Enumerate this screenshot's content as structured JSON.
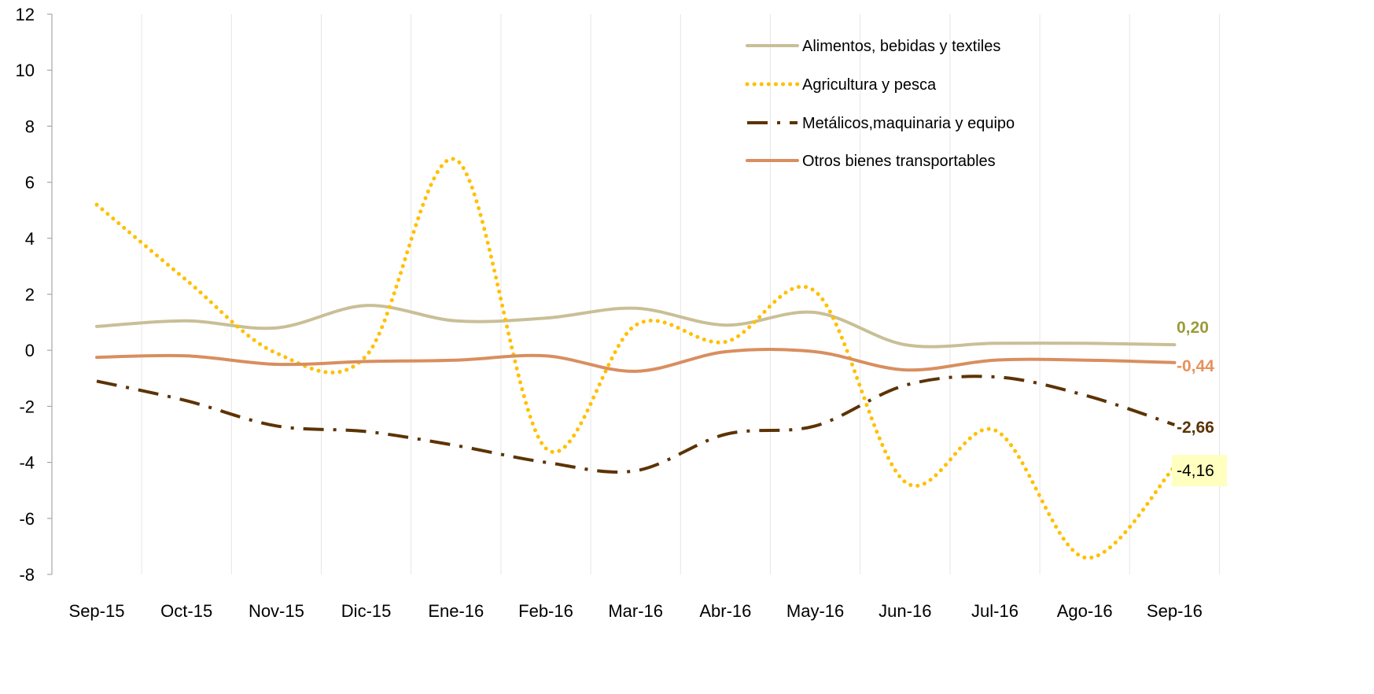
{
  "chart_data": {
    "type": "line",
    "categories": [
      "Sep-15",
      "Oct-15",
      "Nov-15",
      "Dic-15",
      "Ene-16",
      "Feb-16",
      "Mar-16",
      "Abr-16",
      "May-16",
      "Jun-16",
      "Jul-16",
      "Ago-16",
      "Sep-16"
    ],
    "ylim": [
      -8,
      12
    ],
    "yticks": [
      -8,
      -6,
      -4,
      -2,
      0,
      2,
      4,
      6,
      8,
      10,
      12
    ],
    "grid": "vertical",
    "legend_position": "top-right",
    "series": [
      {
        "name": "Alimentos, bebidas y textiles",
        "color": "#C9BF97",
        "style": "solid",
        "values": [
          0.85,
          1.05,
          0.8,
          1.6,
          1.05,
          1.15,
          1.5,
          0.9,
          1.35,
          0.2,
          0.25,
          0.25,
          0.2
        ],
        "end_label": "0,20",
        "end_label_color": "#9B9B3C"
      },
      {
        "name": "Agricultura y pesca",
        "color": "#FFC000",
        "style": "dotted",
        "values": [
          5.2,
          2.5,
          -0.1,
          -0.2,
          6.8,
          -3.5,
          0.9,
          0.3,
          2.1,
          -4.7,
          -2.85,
          -7.4,
          -4.16
        ],
        "end_label": "-4,16",
        "end_label_color": "#000000",
        "end_label_bg": "#FFFFC0"
      },
      {
        "name": "Metálicos,maquinaria y equipo",
        "color": "#5C3305",
        "style": "dashdot",
        "values": [
          -1.1,
          -1.8,
          -2.7,
          -2.9,
          -3.4,
          -4.0,
          -4.3,
          -3.0,
          -2.7,
          -1.25,
          -0.95,
          -1.6,
          -2.66
        ],
        "end_label": "-2,66",
        "end_label_color": "#5C3305"
      },
      {
        "name": "Otros bienes transportables",
        "color": "#D98E5F",
        "style": "solid",
        "values": [
          -0.25,
          -0.2,
          -0.5,
          -0.4,
          -0.35,
          -0.2,
          -0.75,
          -0.05,
          -0.05,
          -0.7,
          -0.35,
          -0.35,
          -0.44
        ],
        "end_label": "-0,44",
        "end_label_color": "#E8915A"
      }
    ]
  }
}
